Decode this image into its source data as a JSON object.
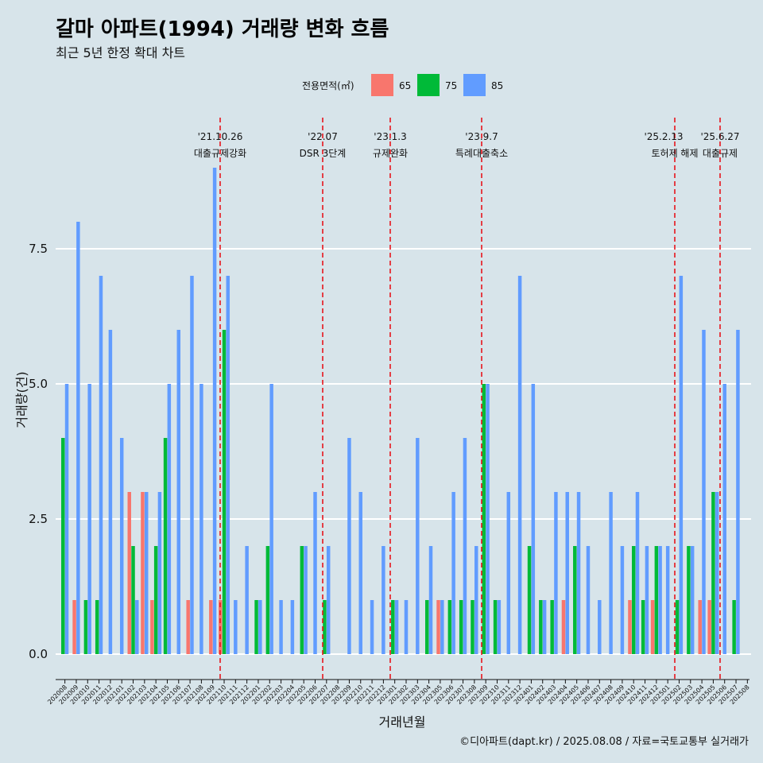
{
  "title": "갈마 아파트(1994) 거래량 변화 흐름",
  "subtitle": "최근 5년 한정 확대 차트",
  "caption": "©디아파트(dapt.kr) / 2025.08.08 / 자료=국토교통부 실거래가",
  "colors": {
    "background": "#d7e4ea",
    "s65": "#f8766d",
    "s75": "#00ba38",
    "s85": "#619cff",
    "event_line": "#e8141c"
  },
  "chart_data": {
    "type": "bar",
    "stacked": false,
    "xlabel": "거래년월",
    "ylabel": "거래량(건)",
    "ylim": [
      -0.35,
      9.5
    ],
    "yticks": [
      0.0,
      2.5,
      5.0,
      7.5
    ],
    "ytick_labels": [
      "0.0",
      "2.5",
      "5.0",
      "7.5"
    ],
    "legend_title": "전용면적(㎡)",
    "legend_position": "top",
    "months": [
      "202008",
      "202009",
      "202010",
      "202011",
      "202012",
      "202101",
      "202102",
      "202103",
      "202104",
      "202105",
      "202106",
      "202107",
      "202108",
      "202109",
      "202110",
      "202111",
      "202112",
      "202201",
      "202202",
      "202203",
      "202204",
      "202205",
      "202206",
      "202207",
      "202208",
      "202209",
      "202210",
      "202211",
      "202212",
      "202301",
      "202302",
      "202303",
      "202304",
      "202305",
      "202306",
      "202307",
      "202308",
      "202309",
      "202310",
      "202311",
      "202312",
      "202401",
      "202402",
      "202403",
      "202404",
      "202405",
      "202406",
      "202407",
      "202408",
      "202409",
      "202410",
      "202411",
      "202412",
      "202501",
      "202502",
      "202503",
      "202504",
      "202505",
      "202506",
      "202507",
      "202508"
    ],
    "series": [
      {
        "name": "65",
        "values": [
          0,
          1,
          0,
          0,
          0,
          0,
          3,
          3,
          1,
          0,
          0,
          1,
          0,
          1,
          1,
          0,
          0,
          0,
          0,
          0,
          0,
          0,
          0,
          0,
          0,
          0,
          0,
          0,
          0,
          0,
          0,
          0,
          0,
          1,
          0,
          0,
          0,
          0,
          0,
          0,
          0,
          0,
          0,
          0,
          1,
          0,
          0,
          0,
          0,
          0,
          1,
          0,
          1,
          0,
          0,
          0,
          1,
          1,
          0,
          0,
          0
        ]
      },
      {
        "name": "75",
        "values": [
          4,
          0,
          1,
          1,
          0,
          0,
          2,
          0,
          2,
          4,
          0,
          0,
          0,
          0,
          6,
          0,
          0,
          1,
          2,
          0,
          0,
          2,
          0,
          1,
          0,
          0,
          0,
          0,
          0,
          1,
          0,
          0,
          1,
          0,
          1,
          1,
          1,
          5,
          1,
          0,
          0,
          2,
          1,
          1,
          0,
          2,
          0,
          0,
          0,
          0,
          2,
          1,
          2,
          0,
          1,
          2,
          0,
          3,
          0,
          1,
          0
        ]
      },
      {
        "name": "85",
        "values": [
          5,
          8,
          5,
          7,
          6,
          4,
          1,
          3,
          3,
          5,
          6,
          7,
          5,
          9,
          7,
          1,
          2,
          1,
          5,
          1,
          1,
          2,
          3,
          2,
          0,
          4,
          3,
          1,
          2,
          1,
          1,
          4,
          2,
          1,
          3,
          4,
          2,
          5,
          1,
          3,
          7,
          5,
          1,
          3,
          3,
          3,
          2,
          1,
          3,
          2,
          3,
          2,
          2,
          2,
          7,
          2,
          6,
          3,
          5,
          6,
          0
        ]
      }
    ],
    "events": [
      {
        "date": "'21.10.26",
        "label": "대출규제강화"
      },
      {
        "date": "'22.07",
        "label": "DSR 3단계"
      },
      {
        "date": "'23.1.3",
        "label": "규제완화"
      },
      {
        "date": "'23.9.7",
        "label": "특례대출축소"
      },
      {
        "date": "'25.2.13",
        "label": "토허제 해제"
      },
      {
        "date": "'25.6.27",
        "label": "대출규제"
      }
    ]
  }
}
